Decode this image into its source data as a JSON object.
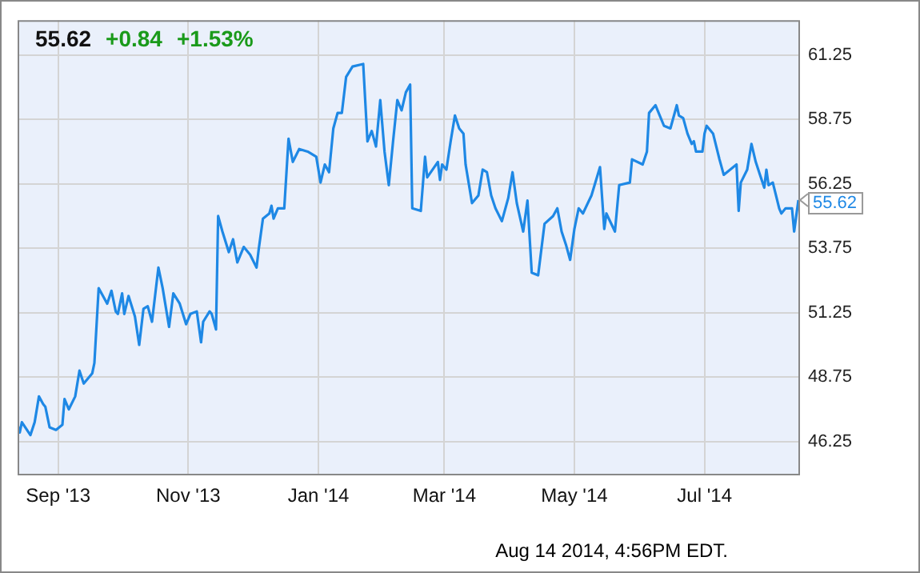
{
  "chart_data": {
    "type": "line",
    "annotations": [
      "55.62",
      "+0.84",
      "+1.53%",
      {
        "text": "55.62",
        "x": "2014-08-14",
        "y": 55.62
      },
      "Aug 14 2014, 4:56PM EDT."
    ],
    "x": [
      "2013-08-13",
      "2013-08-14",
      "2013-08-15",
      "2013-08-19",
      "2013-08-21",
      "2013-08-23",
      "2013-08-25",
      "2013-08-26",
      "2013-08-28",
      "2013-08-31",
      "2013-09-03",
      "2013-09-04",
      "2013-09-06",
      "2013-09-09",
      "2013-09-11",
      "2013-09-13",
      "2013-09-17",
      "2013-09-18",
      "2013-09-20",
      "2013-09-22",
      "2013-09-24",
      "2013-09-26",
      "2013-09-28",
      "2013-09-29",
      "2013-10-01",
      "2013-10-02",
      "2013-10-04",
      "2013-10-07",
      "2013-10-09",
      "2013-10-11",
      "2013-10-13",
      "2013-10-15",
      "2013-10-18",
      "2013-10-20",
      "2013-10-23",
      "2013-10-25",
      "2013-10-28",
      "2013-10-31",
      "2013-11-02",
      "2013-11-05",
      "2013-11-07",
      "2013-11-08",
      "2013-11-11",
      "2013-11-12",
      "2013-11-14",
      "2013-11-15",
      "2013-11-17",
      "2013-11-20",
      "2013-11-22",
      "2013-11-24",
      "2013-11-27",
      "2013-11-30",
      "2013-12-03",
      "2013-12-04",
      "2013-12-06",
      "2013-12-09",
      "2013-12-10",
      "2013-12-11",
      "2013-12-13",
      "2013-12-16",
      "2013-12-18",
      "2013-12-20",
      "2013-12-23",
      "2013-12-27",
      "2013-12-31",
      "2014-01-02",
      "2014-01-04",
      "2014-01-06",
      "2014-01-08",
      "2014-01-10",
      "2014-01-12",
      "2014-01-14",
      "2014-01-17",
      "2014-01-22",
      "2014-01-24",
      "2014-01-26",
      "2014-01-28",
      "2014-01-30",
      "2014-02-01",
      "2014-02-03",
      "2014-02-05",
      "2014-02-07",
      "2014-02-09",
      "2014-02-11",
      "2014-02-13",
      "2014-02-14",
      "2014-02-18",
      "2014-02-20",
      "2014-02-21",
      "2014-02-26",
      "2014-02-27",
      "2014-02-28",
      "2014-03-02",
      "2014-03-04",
      "2014-03-06",
      "2014-03-08",
      "2014-03-10",
      "2014-03-11",
      "2014-03-14",
      "2014-03-17",
      "2014-03-19",
      "2014-03-21",
      "2014-03-23",
      "2014-03-25",
      "2014-03-28",
      "2014-03-31",
      "2014-04-02",
      "2014-04-04",
      "2014-04-07",
      "2014-04-09",
      "2014-04-11",
      "2014-04-14",
      "2014-04-17",
      "2014-04-21",
      "2014-04-23",
      "2014-04-25",
      "2014-04-27",
      "2014-04-29",
      "2014-05-01",
      "2014-05-03",
      "2014-05-05",
      "2014-05-09",
      "2014-05-13",
      "2014-05-15",
      "2014-05-16",
      "2014-05-20",
      "2014-05-22",
      "2014-05-27",
      "2014-05-28",
      "2014-06-02",
      "2014-06-04",
      "2014-06-05",
      "2014-06-08",
      "2014-06-10",
      "2014-06-12",
      "2014-06-15",
      "2014-06-18",
      "2014-06-19",
      "2014-06-21",
      "2014-06-23",
      "2014-06-25",
      "2014-06-26",
      "2014-06-27",
      "2014-06-30",
      "2014-07-01",
      "2014-07-02",
      "2014-07-05",
      "2014-07-08",
      "2014-07-10",
      "2014-07-13",
      "2014-07-16",
      "2014-07-17",
      "2014-07-18",
      "2014-07-21",
      "2014-07-23",
      "2014-07-25",
      "2014-07-27",
      "2014-07-29",
      "2014-07-30",
      "2014-07-31",
      "2014-08-02",
      "2014-08-05",
      "2014-08-06",
      "2014-08-08",
      "2014-08-11",
      "2014-08-12",
      "2014-08-14"
    ],
    "series": [
      {
        "color": "#1e88e5",
        "values": [
          46.9,
          46.6,
          47.0,
          46.5,
          47.0,
          48.0,
          47.7,
          47.6,
          46.8,
          46.7,
          46.9,
          47.9,
          47.5,
          48.0,
          49.0,
          48.5,
          48.9,
          49.3,
          52.2,
          51.9,
          51.6,
          52.1,
          51.3,
          51.2,
          52.0,
          51.2,
          51.9,
          51.1,
          50.0,
          51.4,
          51.5,
          50.9,
          53.0,
          52.2,
          50.7,
          52.0,
          51.6,
          50.8,
          51.2,
          51.3,
          50.1,
          50.9,
          51.3,
          51.2,
          50.6,
          55.0,
          54.4,
          53.6,
          54.1,
          53.2,
          53.8,
          53.5,
          53.0,
          53.7,
          54.9,
          55.1,
          55.4,
          54.9,
          55.3,
          55.3,
          58.0,
          57.1,
          57.6,
          57.5,
          57.3,
          56.3,
          57.0,
          56.7,
          58.4,
          59.0,
          59.0,
          60.4,
          60.8,
          60.9,
          57.9,
          58.3,
          57.7,
          59.5,
          57.5,
          56.2,
          57.9,
          59.5,
          59.1,
          59.8,
          60.1,
          55.3,
          55.2,
          57.3,
          56.5,
          57.1,
          56.4,
          57.0,
          56.8,
          57.9,
          58.9,
          58.4,
          58.2,
          57.0,
          55.5,
          55.8,
          56.8,
          56.7,
          55.8,
          55.3,
          54.8,
          55.7,
          56.7,
          55.5,
          54.4,
          55.6,
          52.8,
          52.7,
          54.7,
          55.0,
          55.3,
          54.4,
          53.9,
          53.3,
          54.5,
          55.3,
          55.1,
          55.8,
          56.9,
          54.5,
          55.1,
          54.4,
          56.2,
          56.3,
          57.2,
          57.0,
          57.5,
          59.0,
          59.3,
          58.9,
          58.5,
          58.4,
          59.3,
          58.9,
          58.8,
          58.2,
          57.8,
          57.9,
          57.5,
          57.5,
          58.2,
          58.5,
          58.2,
          57.2,
          56.6,
          56.8,
          57.0,
          55.2,
          56.3,
          56.8,
          57.8,
          57.1,
          56.6,
          56.1,
          56.8,
          56.2,
          56.3,
          55.3,
          55.1,
          55.3,
          55.3,
          54.4,
          55.62
        ]
      }
    ],
    "xlim": [
      "2013-08-13",
      "2014-08-14"
    ],
    "xticks": [
      {
        "value": "2013-09-01",
        "label": "Sep '13"
      },
      {
        "value": "2013-11-01",
        "label": "Nov '13"
      },
      {
        "value": "2014-01-01",
        "label": "Jan '14"
      },
      {
        "value": "2014-03-01",
        "label": "Mar '14"
      },
      {
        "value": "2014-05-01",
        "label": "May '14"
      },
      {
        "value": "2014-07-01",
        "label": "Jul '14"
      }
    ],
    "ylim": [
      45.0,
      62.6
    ],
    "yticks": [
      46.25,
      48.75,
      51.25,
      53.75,
      56.25,
      58.75,
      61.25
    ],
    "grid": true,
    "legend": false,
    "marker": "none",
    "line_style": "solid"
  }
}
